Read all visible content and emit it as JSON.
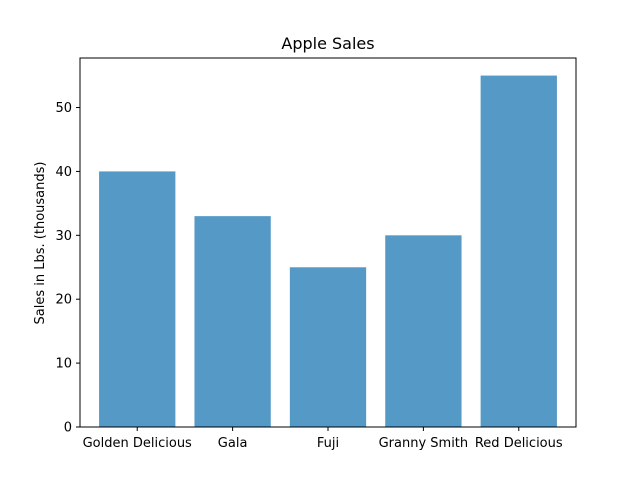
{
  "chart_data": {
    "type": "bar",
    "title": "Apple Sales",
    "xlabel": "",
    "ylabel": "Sales in Lbs. (thousands)",
    "categories": [
      "Golden Delicious",
      "Gala",
      "Fuji",
      "Granny Smith",
      "Red Delicious"
    ],
    "values": [
      40,
      33,
      25,
      30,
      55
    ],
    "ylim": [
      0,
      57.75
    ],
    "yticks": [
      0,
      10,
      20,
      30,
      40,
      50
    ],
    "bar_color": "#5599c7",
    "grid": false,
    "legend": "none"
  }
}
